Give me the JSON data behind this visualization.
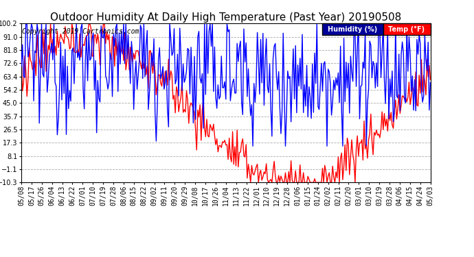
{
  "title": "Outdoor Humidity At Daily High Temperature (Past Year) 20190508",
  "copyright_text": "Copyright 2019 Cartronics.com",
  "yticks": [
    100.2,
    91.0,
    81.8,
    72.6,
    63.4,
    54.2,
    45.0,
    35.7,
    26.5,
    17.3,
    8.1,
    -1.1,
    -10.3
  ],
  "ylim": [
    -10.3,
    100.2
  ],
  "humidity_color": "#0000FF",
  "temp_color": "#FF0000",
  "background_color": "#FFFFFF",
  "plot_bg_color": "#FFFFFF",
  "grid_color": "#AAAAAA",
  "legend_humidity_bg": "#000099",
  "legend_temp_bg": "#FF0000",
  "legend_humidity_text": "Humidity (%)",
  "legend_temp_text": "Temp (°F)",
  "x_labels": [
    "05/08",
    "05/17",
    "05/26",
    "06/04",
    "06/13",
    "06/22",
    "07/01",
    "07/10",
    "07/19",
    "07/28",
    "08/06",
    "08/15",
    "08/22",
    "09/02",
    "09/11",
    "09/20",
    "09/29",
    "10/08",
    "10/17",
    "10/26",
    "11/04",
    "11/13",
    "11/22",
    "12/01",
    "12/10",
    "12/19",
    "12/28",
    "01/06",
    "01/15",
    "01/24",
    "02/02",
    "02/11",
    "02/20",
    "03/01",
    "03/10",
    "03/19",
    "03/28",
    "04/06",
    "04/15",
    "04/24",
    "05/03"
  ],
  "title_fontsize": 11,
  "tick_fontsize": 7,
  "copyright_fontsize": 7,
  "line_width": 1.0
}
